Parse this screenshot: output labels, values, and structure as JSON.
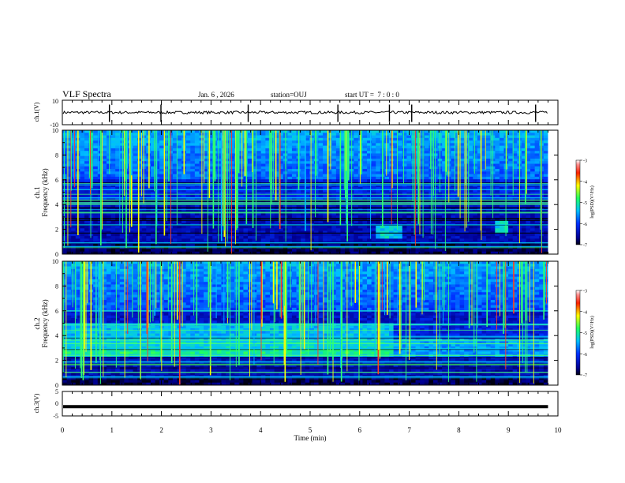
{
  "header": {
    "title": "VLF Spectra",
    "date": "Jan. 6 , 2026",
    "station": "station=OUJ",
    "start": "start UT =  7 : 0 : 0"
  },
  "chart_data": [
    {
      "type": "line",
      "name": "ch1-waveform",
      "ylabel": "ch.1(V)",
      "ylim": [
        -10,
        10
      ],
      "yticks": [
        "10",
        "-10"
      ],
      "baseline": 0,
      "spikes_min": [
        0.95,
        1.99,
        3.75,
        5.56,
        6.6,
        7.05,
        9.55
      ]
    },
    {
      "type": "heatmap",
      "name": "ch1-spectrogram",
      "ylabel": "ch.1\nFrequency (kHz)",
      "ylabel_lines": [
        "ch.1",
        "Frequency (kHz)"
      ],
      "ylim": [
        0,
        10
      ],
      "yticks": [
        "0",
        "2",
        "4",
        "6",
        "8",
        "10"
      ],
      "colorbar": {
        "label": "log(PSD)(V²/Hz)",
        "range": [
          -7,
          -3
        ],
        "ticks": [
          "-3",
          "-4",
          "-5",
          "-6",
          "-7"
        ]
      }
    },
    {
      "type": "heatmap",
      "name": "ch2-spectrogram",
      "ylabel": "ch.2\nFrequency (kHz)",
      "ylabel_lines": [
        "ch.2",
        "Frequency (kHz)"
      ],
      "ylim": [
        0,
        10
      ],
      "yticks": [
        "0",
        "2",
        "4",
        "6",
        "8",
        "10"
      ],
      "colorbar": {
        "label": "log(PSD)(V²/Hz)",
        "range": [
          -7,
          -3
        ],
        "ticks": [
          "-3",
          "-4",
          "-5",
          "-6",
          "-7"
        ]
      }
    },
    {
      "type": "line",
      "name": "ch3-waveform",
      "ylabel": "ch.3(V)",
      "ylim": [
        -5,
        5
      ],
      "yticks": [
        "5",
        "0",
        "-5"
      ],
      "baseline": -1.2
    }
  ],
  "x_axis": {
    "label": "Time (min)",
    "range": [
      0,
      10
    ],
    "data_end": 9.8,
    "ticks": [
      "0",
      "1",
      "2",
      "3",
      "4",
      "5",
      "6",
      "7",
      "8",
      "9",
      "10"
    ]
  },
  "colors": {
    "frame": "#000000",
    "background": "#ffffff"
  }
}
